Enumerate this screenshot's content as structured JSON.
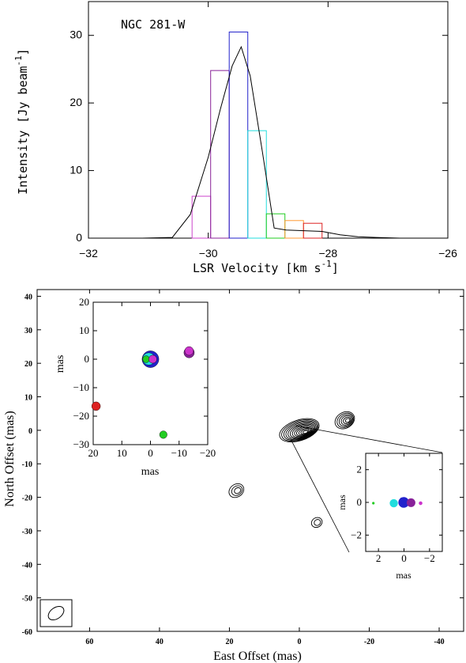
{
  "chart_data": [
    {
      "type": "bar",
      "title": "NGC 281-W",
      "xlabel": "LSR Velocity [km s",
      "xlabel_sup": "-1",
      "xlabel_tail": "]",
      "ylabel": "Intensity [Jy beam",
      "ylabel_sup": "-1",
      "ylabel_tail": "]",
      "xlim": [
        -32,
        -26
      ],
      "ylim": [
        0,
        35
      ],
      "xticks": [
        -32,
        -30,
        -28,
        -26
      ],
      "xtick_labels": [
        "−32",
        "−30",
        "−28",
        "−26"
      ],
      "yticks": [
        0,
        10,
        20,
        30
      ],
      "ytick_labels": [
        "0",
        "10",
        "20",
        "30"
      ],
      "bars": [
        {
          "x0": -30.27,
          "x1": -29.96,
          "value": 6.2,
          "color": "#cc44cc"
        },
        {
          "x0": -29.96,
          "x1": -29.65,
          "value": 24.8,
          "color": "#882299"
        },
        {
          "x0": -29.65,
          "x1": -29.34,
          "value": 30.5,
          "color": "#2222cc"
        },
        {
          "x0": -29.34,
          "x1": -29.03,
          "value": 15.9,
          "color": "#22dddd"
        },
        {
          "x0": -29.03,
          "x1": -28.72,
          "value": 3.6,
          "color": "#22cc22"
        },
        {
          "x0": -28.72,
          "x1": -28.41,
          "value": 2.6,
          "color": "#ff9933"
        },
        {
          "x0": -28.41,
          "x1": -28.1,
          "value": 2.2,
          "color": "#dd2222"
        }
      ],
      "series": [
        {
          "x": [
            -31.8,
            -31.1,
            -30.6,
            -30.3,
            -30.0,
            -29.8,
            -29.6,
            -29.45,
            -29.3,
            -29.1,
            -28.9,
            -28.7,
            -28.4,
            -28.1,
            -27.8,
            -27.5,
            -27.2,
            -26.8,
            -26.3,
            -26.0
          ],
          "y": [
            0.0,
            0.0,
            0.1,
            3.5,
            12.0,
            19.0,
            25.5,
            28.3,
            24.0,
            13.0,
            1.5,
            1.2,
            1.1,
            1.0,
            0.5,
            0.2,
            0.1,
            0.0,
            0.0,
            0.0
          ]
        }
      ]
    },
    {
      "type": "scatter",
      "xlabel": "East Offset (mas)",
      "ylabel": "North Offset (mas)",
      "xlim": [
        75,
        -47
      ],
      "ylim": [
        -60,
        42
      ],
      "xticks": [
        60,
        40,
        20,
        0,
        -20,
        -40
      ],
      "xtick_labels": [
        "60",
        "40",
        "20",
        "0",
        "-20",
        "-40"
      ],
      "yticks": [
        40,
        30,
        20,
        10,
        0,
        -10,
        -20,
        -30,
        -40,
        -50,
        -60
      ],
      "ytick_labels": [
        "40",
        "30",
        "20",
        "10",
        "0",
        "-10",
        "-20",
        "-30",
        "-40",
        "-50",
        "-60"
      ],
      "contour_sources": [
        {
          "x": 0,
          "y": 0,
          "rings": 12
        },
        {
          "x": -13,
          "y": 3,
          "rings": 6
        },
        {
          "x": 18,
          "y": -18,
          "rings": 3
        },
        {
          "x": -5,
          "y": -27.5,
          "rings": 2
        }
      ]
    },
    {
      "type": "scatter",
      "xlabel": "mas",
      "ylabel": "mas",
      "xlim": [
        20,
        -20
      ],
      "ylim": [
        -30,
        20
      ],
      "xticks": [
        20,
        10,
        0,
        -10,
        -20
      ],
      "xtick_labels": [
        "20",
        "10",
        "0",
        "−10",
        "−20"
      ],
      "yticks": [
        20,
        10,
        0,
        -10,
        -20,
        -30
      ],
      "ytick_labels": [
        "20",
        "10",
        "0",
        "−10",
        "−20",
        "−30"
      ],
      "points": [
        {
          "x": 0,
          "y": 0,
          "size": 5,
          "color": "#2222cc"
        },
        {
          "x": 0.6,
          "y": 0.1,
          "size": 3.5,
          "color": "#22dddd"
        },
        {
          "x": 1.5,
          "y": 0,
          "size": 1.6,
          "color": "#22cc22"
        },
        {
          "x": -0.8,
          "y": 0,
          "size": 2,
          "color": "#cc33cc"
        },
        {
          "x": -13.5,
          "y": 2.3,
          "size": 2.8,
          "color": "#882299"
        },
        {
          "x": -13.5,
          "y": 2.9,
          "size": 2.2,
          "color": "#cc33cc"
        },
        {
          "x": 19,
          "y": -16.5,
          "size": 2.2,
          "color": "#dd2222"
        },
        {
          "x": -4.5,
          "y": -26.5,
          "size": 1.8,
          "color": "#22cc22"
        }
      ]
    },
    {
      "type": "scatter",
      "xlabel": "mas",
      "ylabel": "mas",
      "xlim": [
        3,
        -3
      ],
      "ylim": [
        -3,
        3
      ],
      "xticks": [
        2,
        0,
        -2
      ],
      "xtick_labels": [
        "2",
        "0",
        "−2"
      ],
      "yticks": [
        2,
        0,
        -2
      ],
      "ytick_labels": [
        "2",
        "0",
        "−2"
      ],
      "points": [
        {
          "x": 2.4,
          "y": -0.05,
          "size": 0.1,
          "color": "#22cc22"
        },
        {
          "x": 0.8,
          "y": -0.05,
          "size": 0.32,
          "color": "#22dddd"
        },
        {
          "x": 0.02,
          "y": 0,
          "size": 0.42,
          "color": "#2222cc"
        },
        {
          "x": -0.55,
          "y": -0.02,
          "size": 0.34,
          "color": "#882299"
        },
        {
          "x": -1.3,
          "y": -0.05,
          "size": 0.14,
          "color": "#cc33cc"
        }
      ]
    }
  ]
}
